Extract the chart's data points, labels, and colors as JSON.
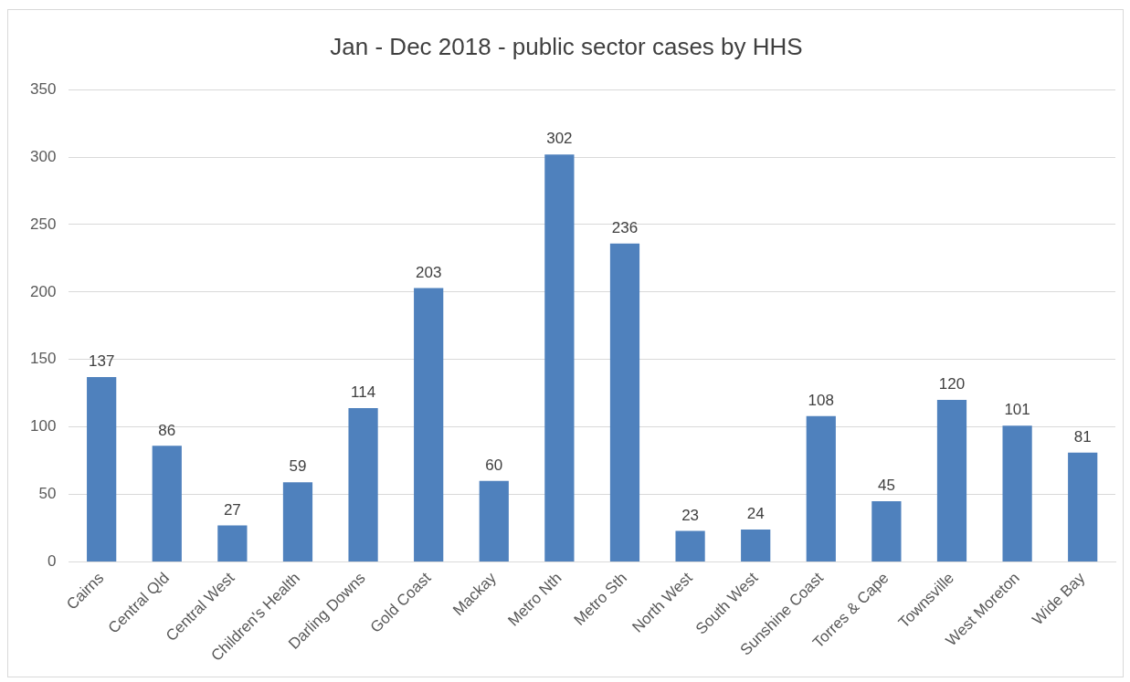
{
  "chart_data": {
    "type": "bar",
    "title": "Jan - Dec 2018 - public sector cases by HHS",
    "categories": [
      "Cairns",
      "Central Qld",
      "Central West",
      "Children's Health",
      "Darling Downs",
      "Gold Coast",
      "Mackay",
      "Metro Nth",
      "Metro Sth",
      "North West",
      "South West",
      "Sunshine Coast",
      "Torres & Cape",
      "Townsville",
      "West Moreton",
      "Wide Bay"
    ],
    "values": [
      137,
      86,
      27,
      59,
      114,
      203,
      60,
      302,
      236,
      23,
      24,
      108,
      45,
      120,
      101,
      81
    ],
    "color": "#4f81bd",
    "ylim": [
      0,
      350
    ],
    "yticks": [
      0,
      50,
      100,
      150,
      200,
      250,
      300,
      350
    ],
    "grid": "y",
    "legend": false,
    "data_labels": true
  }
}
